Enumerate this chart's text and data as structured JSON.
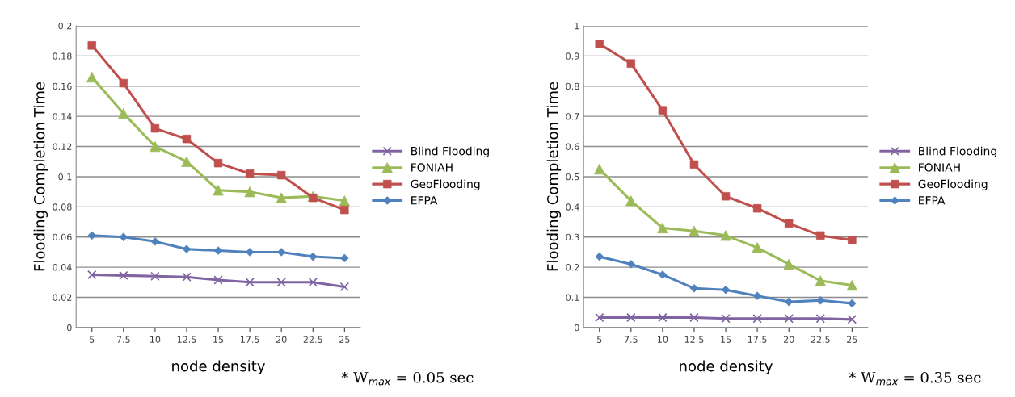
{
  "chart_data": [
    {
      "type": "line",
      "xlabel": "node density",
      "ylabel": "Flooding Completion Time",
      "categories": [
        "5",
        "7.5",
        "10",
        "12.5",
        "15",
        "17.5",
        "20",
        "22.5",
        "25"
      ],
      "ylim": [
        0,
        0.2
      ],
      "yticks": [
        0,
        0.02,
        0.04,
        0.06,
        0.08,
        0.1,
        0.12,
        0.14,
        0.16,
        0.18,
        0.2
      ],
      "grid": "y",
      "legend": "right",
      "annotations": [
        "* W$_{max}$ = 0.05 sec"
      ],
      "series": [
        {
          "name": "Blind Flooding",
          "color": "#8064a2",
          "marker": "cross",
          "values": [
            0.035,
            0.0345,
            0.034,
            0.0335,
            0.0315,
            0.03,
            0.03,
            0.03,
            0.027
          ]
        },
        {
          "name": "FONIAH",
          "color": "#9bbb59",
          "marker": "triangle",
          "values": [
            0.166,
            0.142,
            0.12,
            0.11,
            0.091,
            0.09,
            0.086,
            0.087,
            0.084
          ]
        },
        {
          "name": "GeoFlooding",
          "color": "#c0504d",
          "marker": "square",
          "values": [
            0.187,
            0.162,
            0.132,
            0.125,
            0.109,
            0.102,
            0.101,
            0.086,
            0.078
          ]
        },
        {
          "name": "EFPA",
          "color": "#4f81bd",
          "marker": "diamond",
          "values": [
            0.061,
            0.06,
            0.057,
            0.052,
            0.051,
            0.05,
            0.05,
            0.047,
            0.046
          ]
        }
      ]
    },
    {
      "type": "line",
      "xlabel": "node density",
      "ylabel": "Flooding Completion Time",
      "categories": [
        "5",
        "7.5",
        "10",
        "12.5",
        "15",
        "17.5",
        "20",
        "22.5",
        "25"
      ],
      "ylim": [
        0,
        1
      ],
      "yticks": [
        0,
        0.1,
        0.2,
        0.3,
        0.4,
        0.5,
        0.6,
        0.7,
        0.8,
        0.9,
        1
      ],
      "grid": "y",
      "legend": "right",
      "annotations": [
        "* W$_{max}$ = 0.35 sec"
      ],
      "series": [
        {
          "name": "Blind Flooding",
          "color": "#8064a2",
          "marker": "cross",
          "values": [
            0.033,
            0.033,
            0.033,
            0.033,
            0.03,
            0.03,
            0.03,
            0.03,
            0.027
          ]
        },
        {
          "name": "FONIAH",
          "color": "#9bbb59",
          "marker": "triangle",
          "values": [
            0.525,
            0.42,
            0.33,
            0.32,
            0.305,
            0.265,
            0.21,
            0.155,
            0.14
          ]
        },
        {
          "name": "GeoFlooding",
          "color": "#c0504d",
          "marker": "square",
          "values": [
            0.94,
            0.875,
            0.72,
            0.54,
            0.435,
            0.395,
            0.345,
            0.305,
            0.29
          ]
        },
        {
          "name": "EFPA",
          "color": "#4f81bd",
          "marker": "diamond",
          "values": [
            0.235,
            0.21,
            0.175,
            0.13,
            0.125,
            0.105,
            0.085,
            0.09,
            0.08
          ]
        }
      ]
    }
  ]
}
